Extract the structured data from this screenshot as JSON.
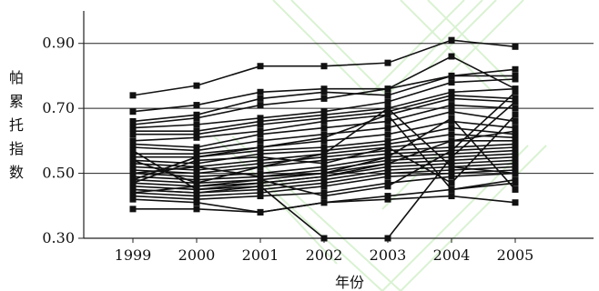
{
  "chart_data": {
    "type": "line",
    "title": "",
    "xlabel": "年份",
    "ylabel": "帕累托指数",
    "categories": [
      "1999",
      "2000",
      "2001",
      "2002",
      "2003",
      "2004",
      "2005"
    ],
    "yticks": [
      "0.30",
      "0.50",
      "0.70",
      "0.90"
    ],
    "ylim": [
      0.3,
      1.0
    ],
    "grid": "horizontal at tick values",
    "legend": "none",
    "colors": {
      "line": "#111111",
      "grid": "#222222",
      "watermark": "#d9f2d2"
    },
    "series": [
      {
        "values": [
          0.74,
          0.77,
          0.83,
          0.83,
          0.84,
          0.91,
          0.89
        ]
      },
      {
        "values": [
          0.69,
          0.71,
          0.75,
          0.76,
          0.76,
          0.86,
          0.76
        ]
      },
      {
        "values": [
          0.66,
          0.68,
          0.73,
          0.75,
          0.74,
          0.8,
          0.8
        ]
      },
      {
        "values": [
          0.65,
          0.67,
          0.71,
          0.73,
          0.76,
          0.8,
          0.82
        ]
      },
      {
        "values": [
          0.64,
          0.65,
          0.67,
          0.69,
          0.72,
          0.78,
          0.79
        ]
      },
      {
        "values": [
          0.63,
          0.63,
          0.66,
          0.68,
          0.7,
          0.75,
          0.76
        ]
      },
      {
        "values": [
          0.62,
          0.62,
          0.65,
          0.67,
          0.69,
          0.74,
          0.73
        ]
      },
      {
        "values": [
          0.6,
          0.61,
          0.63,
          0.66,
          0.68,
          0.73,
          0.72
        ]
      },
      {
        "values": [
          0.59,
          0.58,
          0.62,
          0.64,
          0.66,
          0.71,
          0.7
        ]
      },
      {
        "values": [
          0.58,
          0.57,
          0.6,
          0.62,
          0.64,
          0.69,
          0.66
        ]
      },
      {
        "values": [
          0.56,
          0.56,
          0.58,
          0.6,
          0.62,
          0.66,
          0.64
        ]
      },
      {
        "values": [
          0.55,
          0.55,
          0.57,
          0.58,
          0.6,
          0.64,
          0.62
        ]
      },
      {
        "values": [
          0.54,
          0.53,
          0.56,
          0.57,
          0.59,
          0.62,
          0.61
        ]
      },
      {
        "values": [
          0.53,
          0.52,
          0.54,
          0.56,
          0.58,
          0.6,
          0.6
        ]
      },
      {
        "values": [
          0.52,
          0.51,
          0.53,
          0.55,
          0.57,
          0.58,
          0.59
        ]
      },
      {
        "values": [
          0.51,
          0.5,
          0.52,
          0.54,
          0.56,
          0.57,
          0.58
        ]
      },
      {
        "values": [
          0.5,
          0.49,
          0.5,
          0.52,
          0.55,
          0.56,
          0.57
        ]
      },
      {
        "values": [
          0.49,
          0.48,
          0.49,
          0.51,
          0.54,
          0.55,
          0.56
        ]
      },
      {
        "values": [
          0.48,
          0.47,
          0.48,
          0.5,
          0.53,
          0.54,
          0.55
        ]
      },
      {
        "values": [
          0.47,
          0.46,
          0.47,
          0.49,
          0.52,
          0.53,
          0.54
        ]
      },
      {
        "values": [
          0.46,
          0.45,
          0.46,
          0.48,
          0.51,
          0.52,
          0.53
        ]
      },
      {
        "values": [
          0.45,
          0.44,
          0.45,
          0.47,
          0.5,
          0.51,
          0.52
        ]
      },
      {
        "values": [
          0.44,
          0.43,
          0.44,
          0.46,
          0.49,
          0.5,
          0.51
        ]
      },
      {
        "values": [
          0.43,
          0.42,
          0.43,
          0.44,
          0.47,
          0.49,
          0.5
        ]
      },
      {
        "values": [
          0.42,
          0.41,
          0.38,
          0.41,
          0.43,
          0.45,
          0.47
        ]
      },
      {
        "values": [
          0.39,
          0.39,
          0.38,
          0.41,
          0.42,
          0.43,
          0.41
        ]
      },
      {
        "values": [
          0.45,
          0.44,
          0.46,
          0.3,
          0.3,
          0.55,
          0.72
        ]
      },
      {
        "values": [
          0.48,
          0.55,
          0.58,
          0.61,
          0.68,
          0.45,
          0.48
        ]
      },
      {
        "values": [
          0.54,
          0.47,
          0.52,
          0.56,
          0.7,
          0.52,
          0.5
        ]
      },
      {
        "values": [
          0.5,
          0.52,
          0.49,
          0.5,
          0.55,
          0.67,
          0.45
        ]
      },
      {
        "values": [
          0.57,
          0.45,
          0.47,
          0.49,
          0.53,
          0.6,
          0.63
        ]
      },
      {
        "values": [
          0.47,
          0.54,
          0.55,
          0.53,
          0.58,
          0.47,
          0.68
        ]
      },
      {
        "values": [
          0.44,
          0.46,
          0.48,
          0.43,
          0.46,
          0.57,
          0.75
        ]
      }
    ]
  }
}
